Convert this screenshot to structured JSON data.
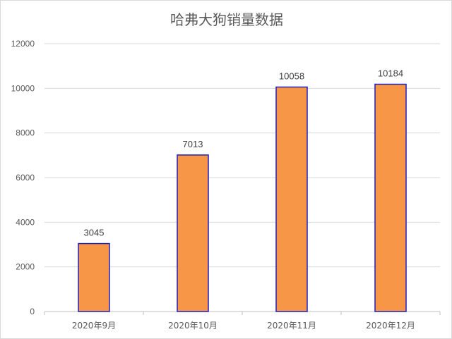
{
  "chart_data": {
    "type": "bar",
    "title": "哈弗大狗销量数据",
    "xlabel": "",
    "ylabel": "",
    "categories": [
      "2020年9月",
      "2020年10月",
      "2020年11月",
      "2020年12月"
    ],
    "values": [
      3045,
      7013,
      10058,
      10184
    ],
    "data_labels": [
      "3045",
      "7013",
      "10058",
      "10184"
    ],
    "ylim": [
      0,
      12000
    ],
    "yticks": [
      0,
      2000,
      4000,
      6000,
      8000,
      10000,
      12000
    ],
    "ytick_labels": [
      "0",
      "2000",
      "4000",
      "6000",
      "8000",
      "10000",
      "12000"
    ],
    "grid": true,
    "legend": "none",
    "colors": {
      "bar_fill": "#F79646",
      "bar_stroke": "#1F1FBF",
      "grid": "#D9D9D9",
      "text": "#595959"
    }
  }
}
